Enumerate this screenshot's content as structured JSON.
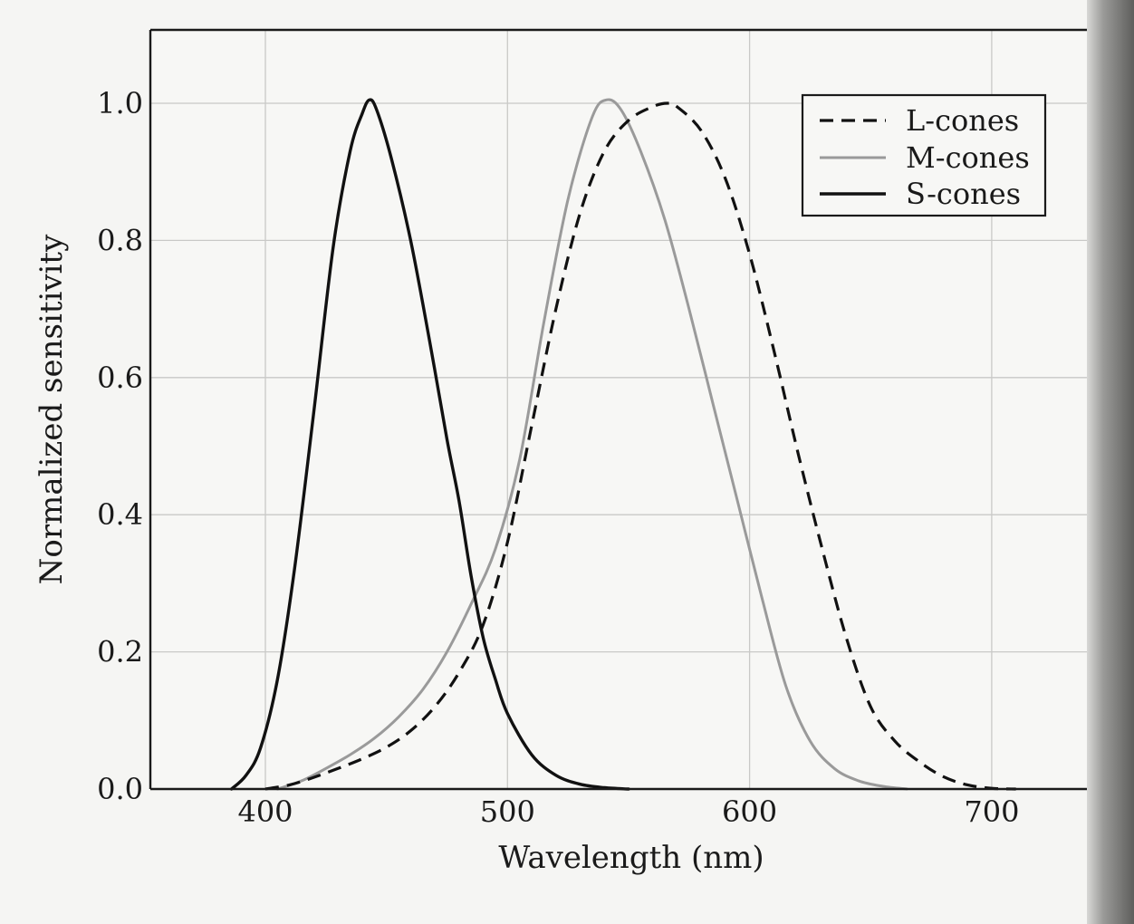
{
  "chart_data": {
    "type": "line",
    "title": "",
    "xlabel": "Wavelength (nm)",
    "ylabel": "Normalized sensitivity",
    "xlim": [
      350,
      740
    ],
    "ylim": [
      0,
      1.1
    ],
    "xticks": [
      "400",
      "500",
      "600",
      "700"
    ],
    "yticks": [
      "0.0",
      "0.2",
      "0.4",
      "0.6",
      "0.8",
      "1.0"
    ],
    "grid": true,
    "legend_position": "top-right",
    "series": [
      {
        "name": "L-cones",
        "style": "dashed",
        "color": "#111111",
        "x": [
          400,
          410,
          420,
          430,
          440,
          450,
          460,
          470,
          480,
          490,
          500,
          510,
          520,
          530,
          540,
          550,
          560,
          566,
          570,
          580,
          590,
          600,
          610,
          620,
          630,
          640,
          650,
          660,
          670,
          680,
          690,
          700,
          710
        ],
        "y": [
          0.0,
          0.006,
          0.017,
          0.03,
          0.044,
          0.061,
          0.085,
          0.12,
          0.17,
          0.24,
          0.36,
          0.53,
          0.7,
          0.84,
          0.93,
          0.975,
          0.995,
          1.0,
          0.995,
          0.96,
          0.89,
          0.78,
          0.64,
          0.49,
          0.35,
          0.22,
          0.12,
          0.07,
          0.04,
          0.018,
          0.006,
          0.001,
          0.0
        ]
      },
      {
        "name": "M-cones",
        "style": "solid-gray",
        "color": "#9a9a9a",
        "x": [
          405,
          415,
          425,
          435,
          445,
          455,
          465,
          475,
          485,
          495,
          505,
          515,
          525,
          535,
          541,
          547,
          555,
          565,
          575,
          585,
          595,
          605,
          615,
          625,
          635,
          645,
          655,
          665
        ],
        "y": [
          0.0,
          0.012,
          0.03,
          0.05,
          0.074,
          0.105,
          0.145,
          0.2,
          0.27,
          0.35,
          0.48,
          0.68,
          0.86,
          0.98,
          1.005,
          0.99,
          0.93,
          0.83,
          0.7,
          0.56,
          0.42,
          0.28,
          0.15,
          0.07,
          0.03,
          0.012,
          0.004,
          0.0
        ]
      },
      {
        "name": "S-cones",
        "style": "solid-black",
        "color": "#111111",
        "x": [
          386,
          392,
          398,
          405,
          412,
          420,
          428,
          435,
          440,
          443,
          446,
          452,
          460,
          468,
          475,
          480,
          485,
          490,
          495,
          500,
          510,
          520,
          530,
          540,
          550
        ],
        "y": [
          0.0,
          0.02,
          0.06,
          0.16,
          0.32,
          0.55,
          0.79,
          0.93,
          0.985,
          1.005,
          0.99,
          0.92,
          0.8,
          0.65,
          0.51,
          0.42,
          0.31,
          0.22,
          0.16,
          0.11,
          0.05,
          0.02,
          0.007,
          0.002,
          0.0
        ]
      }
    ]
  }
}
